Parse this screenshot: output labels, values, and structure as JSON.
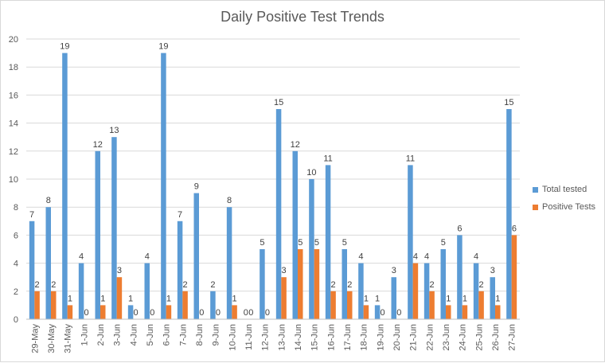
{
  "chart_data": {
    "type": "bar",
    "title": "Daily Positive Test Trends",
    "categories": [
      "29-May",
      "30-May",
      "31-May",
      "1-Jun",
      "2-Jun",
      "3-Jun",
      "4-Jun",
      "5-Jun",
      "6-Jun",
      "7-Jun",
      "8-Jun",
      "9-Jun",
      "10-Jun",
      "11-Jun",
      "12-Jun",
      "13-Jun",
      "14-Jun",
      "15-Jun",
      "16-Jun",
      "17-Jun",
      "18-Jun",
      "19-Jun",
      "20-Jun",
      "21-Jun",
      "22-Jun",
      "23-Jun",
      "24-Jun",
      "25-Jun",
      "26-Jun",
      "27-Jun"
    ],
    "series": [
      {
        "name": "Total tested",
        "color": "#5b9bd5",
        "values": [
          7,
          8,
          19,
          4,
          12,
          13,
          1,
          4,
          19,
          7,
          9,
          2,
          8,
          0,
          5,
          15,
          12,
          10,
          11,
          5,
          4,
          1,
          3,
          11,
          4,
          5,
          6,
          4,
          3,
          15
        ]
      },
      {
        "name": "Positive Tests",
        "color": "#ed7d31",
        "values": [
          2,
          2,
          1,
          0,
          1,
          3,
          0,
          0,
          1,
          2,
          0,
          0,
          1,
          0,
          0,
          3,
          5,
          5,
          2,
          2,
          1,
          0,
          0,
          4,
          2,
          1,
          1,
          2,
          1,
          6
        ]
      }
    ],
    "ylim": [
      0,
      20
    ],
    "yticks": [
      0,
      2,
      4,
      6,
      8,
      10,
      12,
      14,
      16,
      18,
      20
    ],
    "grid": true,
    "legend_position": "right",
    "data_labels": true
  }
}
